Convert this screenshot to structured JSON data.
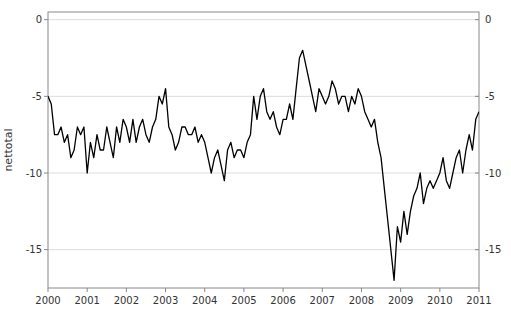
{
  "chart_data": {
    "type": "line",
    "ylabel": "nettotal",
    "color": "#000000",
    "grid": true,
    "xlim": [
      2000.0,
      2011.0
    ],
    "ylim": [
      -17.5,
      0.5
    ],
    "xticks": [
      2000,
      2001,
      2002,
      2003,
      2004,
      2005,
      2006,
      2007,
      2008,
      2009,
      2010,
      2011
    ],
    "yticks": [
      0,
      -5,
      -10,
      -15
    ],
    "y2lim": [
      -17.5,
      0.5
    ],
    "y2ticks": [
      0,
      -5,
      -10,
      -15
    ],
    "x": [
      2000.0,
      2000.083,
      2000.167,
      2000.25,
      2000.333,
      2000.417,
      2000.5,
      2000.583,
      2000.667,
      2000.75,
      2000.833,
      2000.917,
      2001.0,
      2001.083,
      2001.167,
      2001.25,
      2001.333,
      2001.417,
      2001.5,
      2001.583,
      2001.667,
      2001.75,
      2001.833,
      2001.917,
      2002.0,
      2002.083,
      2002.167,
      2002.25,
      2002.333,
      2002.417,
      2002.5,
      2002.583,
      2002.667,
      2002.75,
      2002.833,
      2002.917,
      2003.0,
      2003.083,
      2003.167,
      2003.25,
      2003.333,
      2003.417,
      2003.5,
      2003.583,
      2003.667,
      2003.75,
      2003.833,
      2003.917,
      2004.0,
      2004.083,
      2004.167,
      2004.25,
      2004.333,
      2004.417,
      2004.5,
      2004.583,
      2004.667,
      2004.75,
      2004.833,
      2004.917,
      2005.0,
      2005.083,
      2005.167,
      2005.25,
      2005.333,
      2005.417,
      2005.5,
      2005.583,
      2005.667,
      2005.75,
      2005.833,
      2005.917,
      2006.0,
      2006.083,
      2006.167,
      2006.25,
      2006.333,
      2006.417,
      2006.5,
      2006.583,
      2006.667,
      2006.75,
      2006.833,
      2006.917,
      2007.0,
      2007.083,
      2007.167,
      2007.25,
      2007.333,
      2007.417,
      2007.5,
      2007.583,
      2007.667,
      2007.75,
      2007.833,
      2007.917,
      2008.0,
      2008.083,
      2008.167,
      2008.25,
      2008.333,
      2008.417,
      2008.5,
      2008.583,
      2008.667,
      2008.75,
      2008.833,
      2008.917,
      2009.0,
      2009.083,
      2009.167,
      2009.25,
      2009.333,
      2009.417,
      2009.5,
      2009.583,
      2009.667,
      2009.75,
      2009.833,
      2009.917,
      2010.0,
      2010.083,
      2010.167,
      2010.25,
      2010.333,
      2010.417,
      2010.5,
      2010.583,
      2010.667,
      2010.75,
      2010.833,
      2010.917,
      2011.0
    ],
    "values": [
      -5.0,
      -5.5,
      -7.5,
      -7.5,
      -7.0,
      -8.0,
      -7.5,
      -9.0,
      -8.5,
      -7.0,
      -7.5,
      -7.0,
      -10.0,
      -8.0,
      -9.0,
      -7.5,
      -8.5,
      -8.5,
      -7.0,
      -8.0,
      -9.0,
      -7.0,
      -8.0,
      -6.5,
      -7.0,
      -8.0,
      -6.5,
      -8.0,
      -7.0,
      -6.5,
      -7.5,
      -8.0,
      -7.0,
      -6.5,
      -5.0,
      -5.5,
      -4.5,
      -7.0,
      -7.5,
      -8.5,
      -8.0,
      -7.0,
      -7.0,
      -7.5,
      -7.5,
      -7.0,
      -8.0,
      -7.5,
      -8.0,
      -9.0,
      -10.0,
      -9.0,
      -8.5,
      -9.5,
      -10.5,
      -8.5,
      -8.0,
      -9.0,
      -8.5,
      -8.5,
      -9.0,
      -8.0,
      -7.5,
      -5.0,
      -6.5,
      -5.0,
      -4.5,
      -6.0,
      -6.5,
      -6.0,
      -7.0,
      -7.5,
      -6.5,
      -6.5,
      -5.5,
      -6.5,
      -4.5,
      -2.5,
      -2.0,
      -3.0,
      -4.0,
      -5.0,
      -6.0,
      -4.5,
      -5.0,
      -5.5,
      -5.0,
      -4.0,
      -4.5,
      -5.5,
      -5.0,
      -5.0,
      -6.0,
      -5.0,
      -5.5,
      -4.5,
      -5.0,
      -6.0,
      -6.5,
      -7.0,
      -6.5,
      -8.0,
      -9.0,
      -11.0,
      -13.0,
      -15.0,
      -17.0,
      -13.5,
      -14.5,
      -12.5,
      -14.0,
      -12.5,
      -11.5,
      -11.0,
      -10.0,
      -12.0,
      -11.0,
      -10.5,
      -11.0,
      -10.5,
      -10.0,
      -9.0,
      -10.5,
      -11.0,
      -10.0,
      -9.0,
      -8.5,
      -10.0,
      -8.5,
      -7.5,
      -8.5,
      -6.5,
      -6.0
    ]
  }
}
